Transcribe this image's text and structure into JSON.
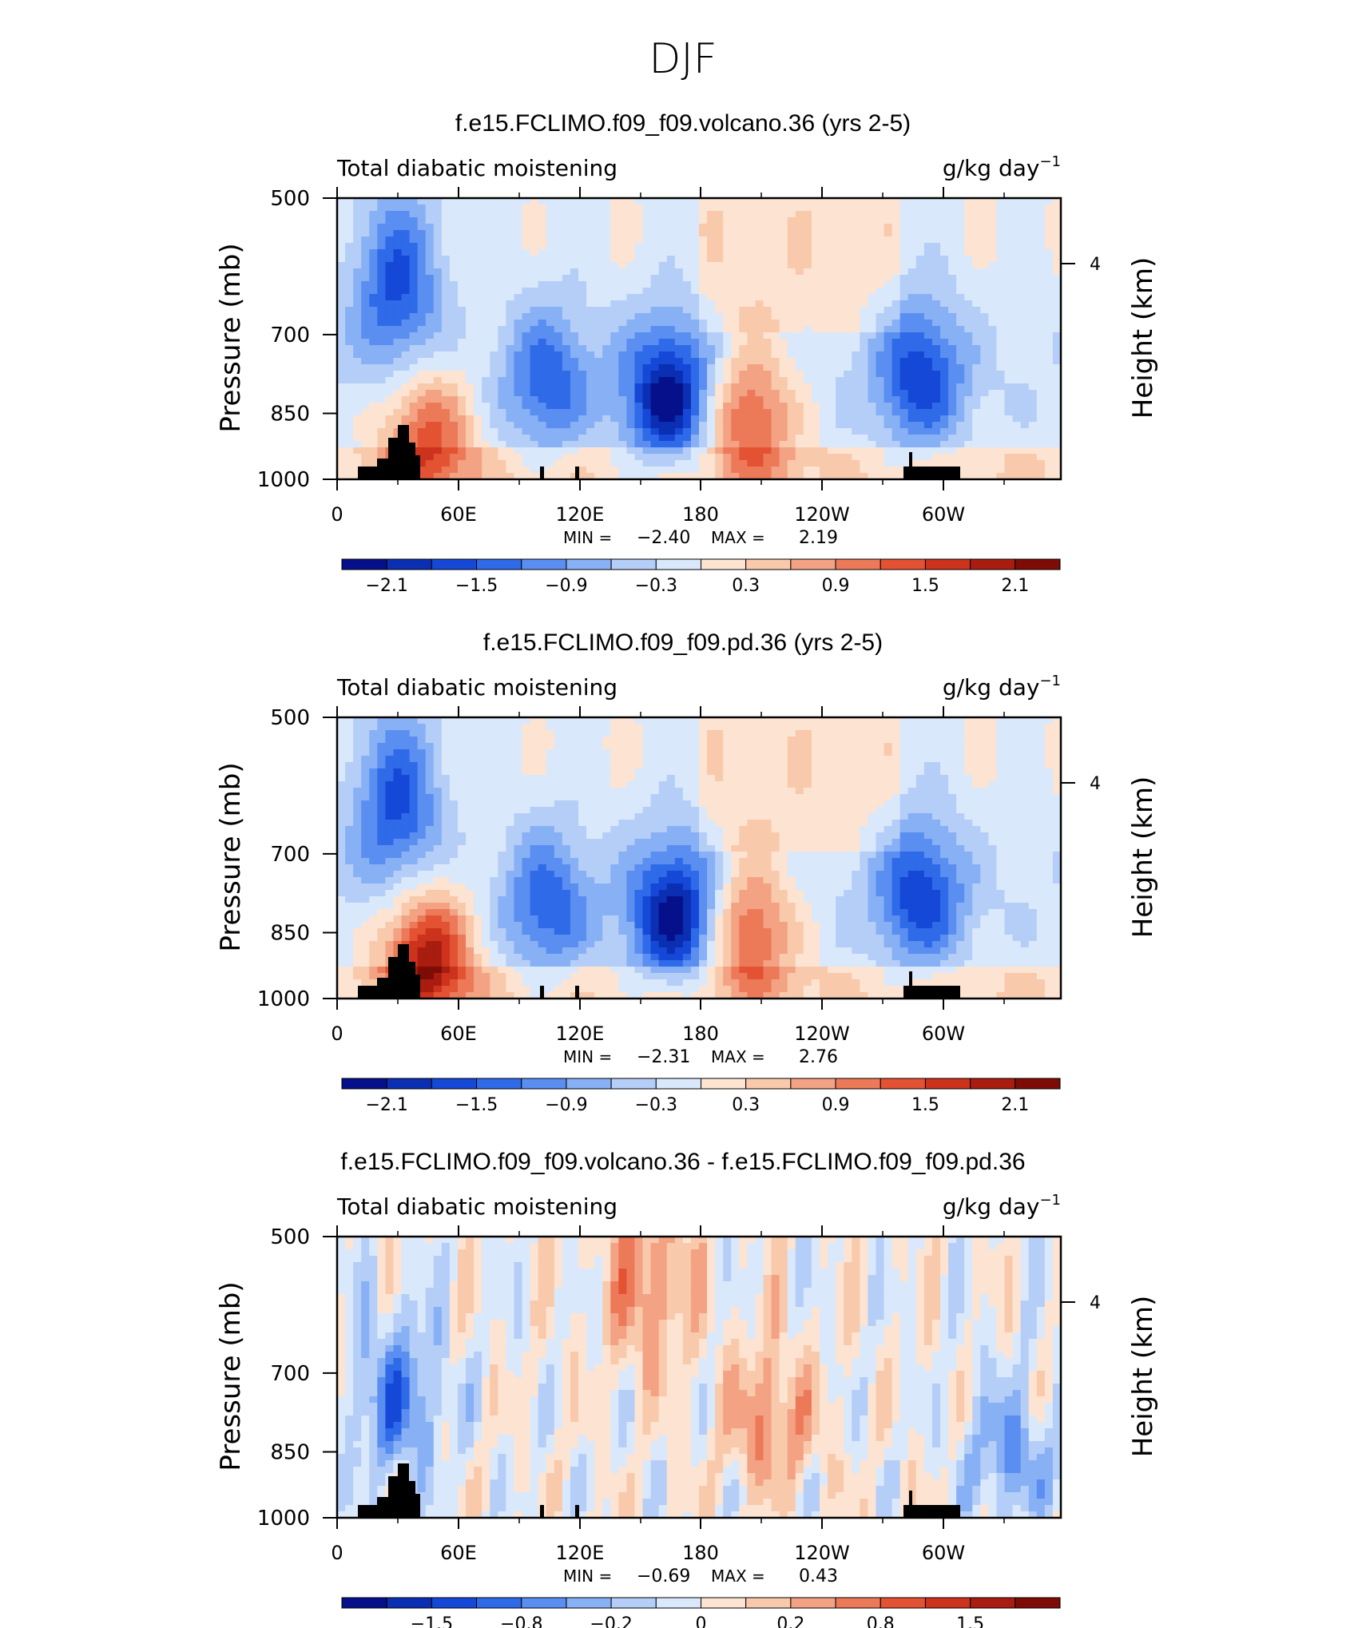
{
  "figure": {
    "title": "DJF"
  },
  "panel_common": {
    "left_string": "Total diabatic moistening",
    "right_string": "g/kg day",
    "right_string_exp": "−1",
    "ylabel": "Pressure (mb)",
    "ylabel_right": "Height (km)",
    "min_label": "MIN =",
    "max_label": "MAX ="
  },
  "panels": [
    {
      "title": "f.e15.FCLIMO.f09_f09.volcano.36 (yrs 2-5)",
      "min_value": "−2.40",
      "max_value": "2.19"
    },
    {
      "title": "f.e15.FCLIMO.f09_f09.pd.36 (yrs 2-5)",
      "min_value": "−2.31",
      "max_value": "2.76"
    },
    {
      "title": "f.e15.FCLIMO.f09_f09.volcano.36 - f.e15.FCLIMO.f09_f09.pd.36",
      "min_value": "−0.69",
      "max_value": "0.43"
    }
  ],
  "chart_data": [
    {
      "type": "heatmap",
      "title": "f.e15.FCLIMO.f09_f09.volcano.36 (yrs 2-5)",
      "variable": "Total diabatic moistening",
      "units": "g/kg day⁻¹",
      "x_ticks": [
        "0",
        "60E",
        "120E",
        "180",
        "120W",
        "60W"
      ],
      "y_ticks": [
        "500",
        "700",
        "850",
        "1000"
      ],
      "y_right_ticks": [
        "4"
      ],
      "colorbar_labels": [
        "−2.1",
        "−1.5",
        "−0.9",
        "−0.3",
        "0.3",
        "0.9",
        "1.5",
        "2.1"
      ],
      "levels": [
        -2.1,
        -1.8,
        -1.5,
        -1.2,
        -0.9,
        -0.6,
        -0.3,
        0,
        0.3,
        0.6,
        0.9,
        1.2,
        1.5,
        1.8,
        2.1
      ],
      "min": -2.4,
      "max": 2.19,
      "features": [
        {
          "lon": 30,
          "p": 620,
          "value": -1.5
        },
        {
          "lon": 105,
          "p": 790,
          "value": -1.2
        },
        {
          "lon": 165,
          "p": 820,
          "value": -2.1
        },
        {
          "lon": 205,
          "p": 860,
          "value": 1.5
        },
        {
          "lon": 290,
          "p": 780,
          "value": -1.5
        },
        {
          "lon": 45,
          "p": 900,
          "value": 1.5
        }
      ]
    },
    {
      "type": "heatmap",
      "title": "f.e15.FCLIMO.f09_f09.pd.36 (yrs 2-5)",
      "variable": "Total diabatic moistening",
      "units": "g/kg day⁻¹",
      "x_ticks": [
        "0",
        "60E",
        "120E",
        "180",
        "120W",
        "60W"
      ],
      "y_ticks": [
        "500",
        "700",
        "850",
        "1000"
      ],
      "y_right_ticks": [
        "4"
      ],
      "colorbar_labels": [
        "−2.1",
        "−1.5",
        "−0.9",
        "−0.3",
        "0.3",
        "0.9",
        "1.5",
        "2.1"
      ],
      "levels": [
        -2.1,
        -1.8,
        -1.5,
        -1.2,
        -0.9,
        -0.6,
        -0.3,
        0,
        0.3,
        0.6,
        0.9,
        1.2,
        1.5,
        1.8,
        2.1
      ],
      "min": -2.31,
      "max": 2.76,
      "features": [
        {
          "lon": 30,
          "p": 620,
          "value": -1.5
        },
        {
          "lon": 105,
          "p": 800,
          "value": -1.2
        },
        {
          "lon": 168,
          "p": 820,
          "value": -2.1
        },
        {
          "lon": 205,
          "p": 850,
          "value": 1.5
        },
        {
          "lon": 290,
          "p": 780,
          "value": -1.5
        },
        {
          "lon": 45,
          "p": 900,
          "value": 2.1
        }
      ]
    },
    {
      "type": "heatmap",
      "title": "f.e15.FCLIMO.f09_f09.volcano.36 - f.e15.FCLIMO.f09_f09.pd.36",
      "variable": "Total diabatic moistening",
      "units": "g/kg day⁻¹",
      "x_ticks": [
        "0",
        "60E",
        "120E",
        "180",
        "120W",
        "60W"
      ],
      "y_ticks": [
        "500",
        "700",
        "850",
        "1000"
      ],
      "y_right_ticks": [
        "4"
      ],
      "colorbar_labels": [
        "−1.5",
        "−0.8",
        "−0.2",
        "0",
        "0.2",
        "0.8",
        "1.5"
      ],
      "min": -0.69,
      "max": 0.43,
      "features": [
        {
          "lon": 30,
          "p": 750,
          "value": -0.4
        },
        {
          "lon": 155,
          "p": 560,
          "value": 0.3
        },
        {
          "lon": 215,
          "p": 790,
          "value": 0.3
        },
        {
          "lon": 335,
          "p": 860,
          "value": -0.3
        }
      ]
    }
  ],
  "colors": {
    "neg": [
      "#05108a",
      "#0a2fb2",
      "#1648d8",
      "#2f6ae8",
      "#5a8ef0",
      "#88b0f4",
      "#b5cef8",
      "#dae8fb"
    ],
    "pos": [
      "#fde4d2",
      "#f9c9ac",
      "#f3a283",
      "#ec7a59",
      "#e35233",
      "#cc321c",
      "#a81d10",
      "#7e0b05"
    ],
    "land": "#000000"
  }
}
